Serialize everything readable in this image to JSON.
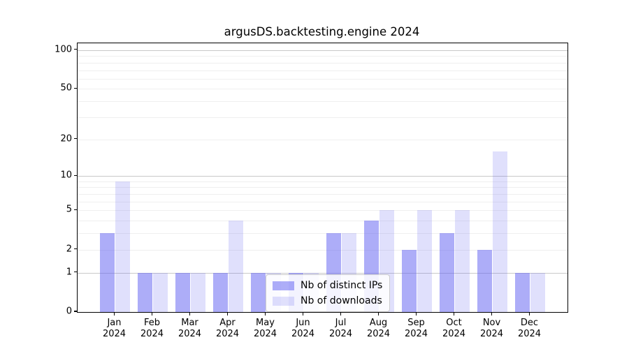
{
  "chart_data": {
    "type": "bar",
    "title": "argusDS.backtesting.engine 2024",
    "months": [
      "Jan",
      "Feb",
      "Mar",
      "Apr",
      "May",
      "Jun",
      "Jul",
      "Aug",
      "Sep",
      "Oct",
      "Nov",
      "Dec"
    ],
    "year": "2024",
    "series": [
      {
        "name": "Nb of distinct IPs",
        "color": "rgba(98,98,242,0.52)",
        "values": [
          3,
          1,
          1,
          1,
          1,
          1,
          3,
          4,
          2,
          3,
          2,
          1
        ]
      },
      {
        "name": "Nb of downloads",
        "color": "rgba(98,98,242,0.20)",
        "values": [
          9,
          1,
          1,
          4,
          1,
          1,
          3,
          5,
          5,
          5,
          16,
          1
        ]
      }
    ],
    "yscale": "log1p",
    "ylim": [
      0,
      113
    ],
    "yticks": [
      0,
      1,
      2,
      5,
      10,
      20,
      50,
      100
    ],
    "gridlines_major": [
      1,
      10,
      100
    ],
    "gridlines_minor": [
      2,
      3,
      4,
      5,
      6,
      7,
      8,
      9,
      20,
      30,
      40,
      50,
      60,
      70,
      80,
      90
    ],
    "grid": true,
    "legend_position": "lower center",
    "colors": {
      "grid_major": "#c9c9c9",
      "grid_minor": "#efefef",
      "spine": "#000000",
      "background": "#ffffff"
    }
  }
}
